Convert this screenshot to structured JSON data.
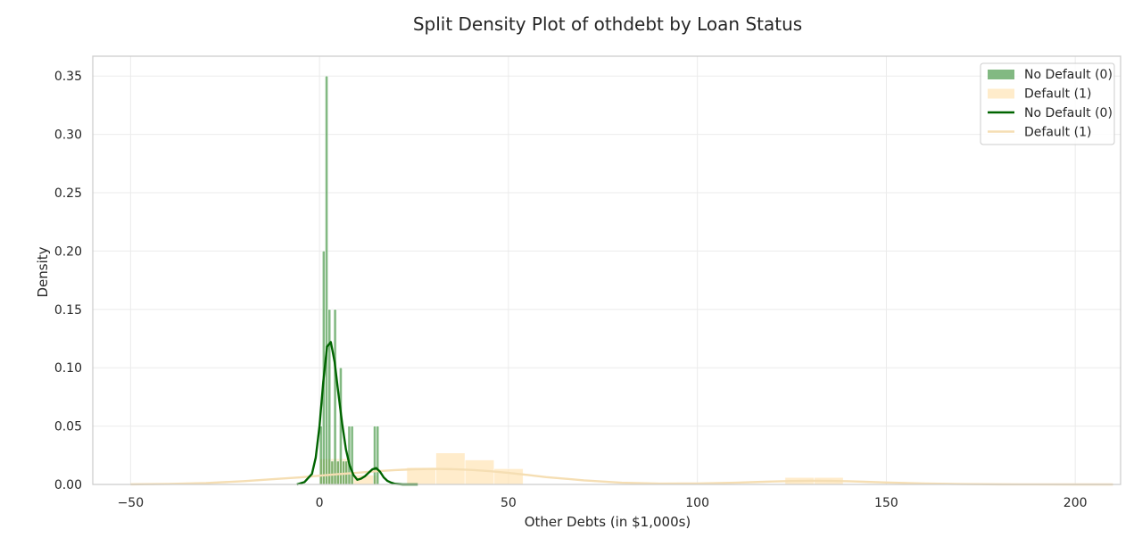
{
  "chart_data": {
    "type": "histogram+kde",
    "title": "Split Density Plot of othdebt by Loan Status",
    "xlabel": "Other Debts (in $1,000s)",
    "ylabel": "Density",
    "xlim": [
      -60,
      212
    ],
    "ylim": [
      0,
      0.367
    ],
    "xticks": [
      -50,
      0,
      50,
      100,
      150,
      200
    ],
    "xtick_labels": [
      "−50",
      "0",
      "50",
      "100",
      "150",
      "200"
    ],
    "yticks": [
      0.0,
      0.05,
      0.1,
      0.15,
      0.2,
      0.25,
      0.3,
      0.35
    ],
    "ytick_labels": [
      "0.00",
      "0.05",
      "0.10",
      "0.15",
      "0.20",
      "0.25",
      "0.30",
      "0.35"
    ],
    "grid": true,
    "legend_position": "top-right",
    "colors": {
      "no_default_hist": "#2e8b2e",
      "default_hist": "#ffe4b5",
      "no_default_kde": "#006400",
      "default_kde": "#f5deb3",
      "grid": "#ebebeb",
      "frame": "#cccccc"
    },
    "legend": [
      {
        "kind": "patch",
        "label": "No Default (0)",
        "series": "no_default"
      },
      {
        "kind": "patch",
        "label": "Default (1)",
        "series": "default"
      },
      {
        "kind": "line",
        "label": "No Default (0)",
        "series": "no_default"
      },
      {
        "kind": "line",
        "label": "Default (1)",
        "series": "default"
      }
    ],
    "histograms": [
      {
        "name": "No Default (0)",
        "series": "no_default",
        "bins": [
          {
            "x0": 0.0,
            "x1": 0.75,
            "density": 0.05
          },
          {
            "x0": 0.75,
            "x1": 1.5,
            "density": 0.2
          },
          {
            "x0": 1.5,
            "x1": 2.25,
            "density": 0.35
          },
          {
            "x0": 2.25,
            "x1": 3.0,
            "density": 0.15
          },
          {
            "x0": 3.0,
            "x1": 3.75,
            "density": 0.02
          },
          {
            "x0": 3.75,
            "x1": 4.5,
            "density": 0.15
          },
          {
            "x0": 4.5,
            "x1": 5.25,
            "density": 0.02
          },
          {
            "x0": 5.25,
            "x1": 6.0,
            "density": 0.1
          },
          {
            "x0": 6.0,
            "x1": 6.75,
            "density": 0.02
          },
          {
            "x0": 6.75,
            "x1": 7.5,
            "density": 0.02
          },
          {
            "x0": 7.5,
            "x1": 8.25,
            "density": 0.05
          },
          {
            "x0": 8.25,
            "x1": 9.0,
            "density": 0.05
          },
          {
            "x0": 14.25,
            "x1": 15.0,
            "density": 0.05
          },
          {
            "x0": 15.0,
            "x1": 15.75,
            "density": 0.05
          }
        ]
      },
      {
        "name": "Default (1)",
        "series": "default",
        "bins": [
          {
            "x0": 0.0,
            "x1": 7.7,
            "density": 0.022
          },
          {
            "x0": 7.7,
            "x1": 15.4,
            "density": 0.008
          },
          {
            "x0": 23.1,
            "x1": 30.8,
            "density": 0.0145
          },
          {
            "x0": 30.8,
            "x1": 38.5,
            "density": 0.027
          },
          {
            "x0": 38.5,
            "x1": 46.2,
            "density": 0.021
          },
          {
            "x0": 46.2,
            "x1": 53.9,
            "density": 0.0135
          },
          {
            "x0": 123.2,
            "x1": 130.9,
            "density": 0.006
          },
          {
            "x0": 130.9,
            "x1": 138.6,
            "density": 0.006
          }
        ]
      }
    ],
    "kde": [
      {
        "name": "No Default (0)",
        "series": "no_default",
        "x": [
          -6,
          -4,
          -2,
          -1,
          0,
          1,
          2,
          3,
          4,
          5,
          6,
          7,
          8,
          9,
          10,
          11,
          12,
          13,
          14,
          15,
          16,
          17,
          18,
          19,
          20,
          22,
          24,
          26
        ],
        "y": [
          0.0,
          0.002,
          0.009,
          0.023,
          0.05,
          0.088,
          0.118,
          0.122,
          0.105,
          0.078,
          0.052,
          0.03,
          0.016,
          0.008,
          0.004,
          0.005,
          0.007,
          0.01,
          0.013,
          0.014,
          0.011,
          0.006,
          0.003,
          0.0015,
          0.0005,
          0.0,
          0.0,
          0.0
        ]
      },
      {
        "name": "Default (1)",
        "series": "default",
        "x": [
          -50,
          -40,
          -30,
          -20,
          -10,
          -5,
          0,
          5,
          10,
          15,
          20,
          25,
          30,
          35,
          40,
          45,
          50,
          55,
          60,
          70,
          80,
          90,
          100,
          110,
          115,
          120,
          125,
          130,
          135,
          140,
          145,
          150,
          160,
          170,
          180,
          190,
          200,
          210
        ],
        "y": [
          0.0001,
          0.0004,
          0.0012,
          0.0028,
          0.005,
          0.0061,
          0.0075,
          0.0088,
          0.01,
          0.0113,
          0.0123,
          0.013,
          0.0133,
          0.0131,
          0.0125,
          0.0114,
          0.0099,
          0.0082,
          0.0063,
          0.0035,
          0.0015,
          0.0007,
          0.0008,
          0.0015,
          0.002,
          0.0025,
          0.0029,
          0.0031,
          0.003,
          0.0027,
          0.0022,
          0.0017,
          0.0008,
          0.0003,
          0.0001,
          3e-05,
          1e-05,
          0.0
        ]
      }
    ]
  }
}
